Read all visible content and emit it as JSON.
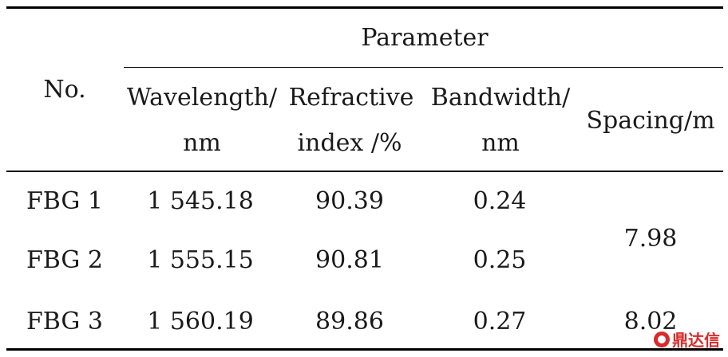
{
  "table": {
    "headers": {
      "no": "No.",
      "parameter": "Parameter",
      "wavelength_line1": "Wavelength/",
      "wavelength_line2": "nm",
      "refractive_line1": "Refractive",
      "refractive_line2": "index /%",
      "bandwidth_line1": "Bandwidth/",
      "bandwidth_line2": "nm",
      "spacing": "Spacing/m"
    },
    "rows": [
      {
        "no": "FBG 1",
        "wavelength": "1 545.18",
        "refractive": "90.39",
        "bandwidth": "0.24"
      },
      {
        "no": "FBG 2",
        "wavelength": "1 555.15",
        "refractive": "90.81",
        "bandwidth": "0.25"
      },
      {
        "no": "FBG 3",
        "wavelength": "1 560.19",
        "refractive": "89.86",
        "bandwidth": "0.27"
      }
    ],
    "spacing_values": [
      "7.98",
      "8.02"
    ]
  },
  "watermark": {
    "text": "鼎达信",
    "icon": "logo-mark-icon"
  }
}
